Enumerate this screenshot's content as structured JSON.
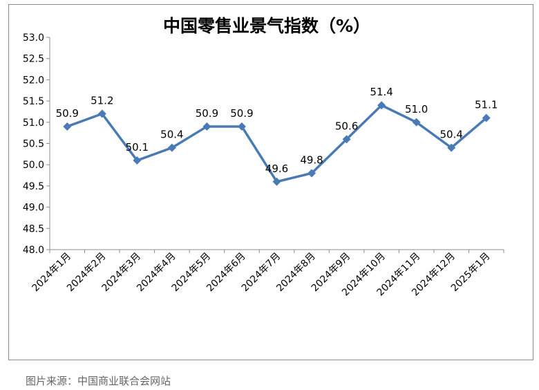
{
  "chart_data": {
    "type": "line",
    "title": "中国零售业景气指数（%）",
    "categories": [
      "2024年1月",
      "2024年2月",
      "2024年3月",
      "2024年4月",
      "2024年5月",
      "2024年6月",
      "2024年7月",
      "2024年8月",
      "2024年9月",
      "2024年10月",
      "2024年11月",
      "2024年12月",
      "2025年1月"
    ],
    "values": [
      50.9,
      51.2,
      50.1,
      50.4,
      50.9,
      50.9,
      49.6,
      49.8,
      50.6,
      51.4,
      51.0,
      50.4,
      51.1
    ],
    "data_labels": [
      "50.9",
      "51.2",
      "50.1",
      "50.4",
      "50.9",
      "50.9",
      "49.6",
      "49.8",
      "50.6",
      "51.4",
      "51.0",
      "50.4",
      "51.1"
    ],
    "ylim": [
      48.0,
      53.0
    ],
    "yticks": [
      "48.0",
      "48.5",
      "49.0",
      "49.5",
      "50.0",
      "50.5",
      "51.0",
      "51.5",
      "52.0",
      "52.5",
      "53.0"
    ],
    "grid": false,
    "legend": false,
    "line_color": "#4a7ab5"
  },
  "caption": "图片来源：中国商业联合会网站"
}
